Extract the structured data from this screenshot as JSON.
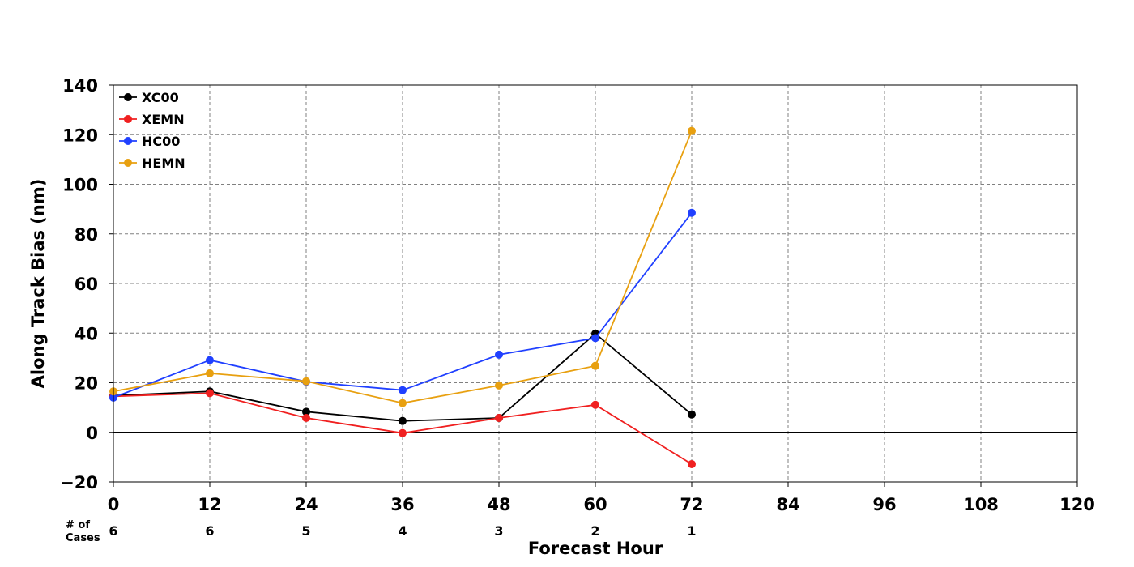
{
  "chart_data": {
    "type": "line",
    "xlabel": "Forecast Hour",
    "ylabel": "Along Track Bias (nm)",
    "xlim": [
      0,
      120
    ],
    "ylim": [
      -20,
      140
    ],
    "xticks": [
      0,
      12,
      24,
      36,
      48,
      60,
      72,
      84,
      96,
      108,
      120
    ],
    "yticks": [
      -20,
      0,
      20,
      40,
      60,
      80,
      100,
      120,
      140
    ],
    "ytick_labels": [
      "−20",
      "0",
      "20",
      "40",
      "60",
      "80",
      "100",
      "120",
      "140"
    ],
    "grid": true,
    "legend_position": "top-left",
    "cases_label_line1": "# of",
    "cases_label_line2": "Cases",
    "cases": [
      {
        "x": 0,
        "n": "6"
      },
      {
        "x": 12,
        "n": "6"
      },
      {
        "x": 24,
        "n": "5"
      },
      {
        "x": 36,
        "n": "4"
      },
      {
        "x": 48,
        "n": "3"
      },
      {
        "x": 60,
        "n": "2"
      },
      {
        "x": 72,
        "n": "1"
      }
    ],
    "series": [
      {
        "name": "XC00",
        "color": "#000000",
        "x": [
          0,
          12,
          24,
          36,
          48,
          60,
          72
        ],
        "y": [
          14.8,
          16.5,
          8.3,
          4.6,
          5.8,
          39.8,
          7.2
        ]
      },
      {
        "name": "XEMN",
        "color": "#f02020",
        "x": [
          0,
          12,
          24,
          36,
          48,
          60,
          72
        ],
        "y": [
          14.5,
          15.8,
          5.8,
          -0.3,
          5.8,
          11.1,
          -12.8
        ]
      },
      {
        "name": "HC00",
        "color": "#2040ff",
        "x": [
          0,
          12,
          24,
          36,
          48,
          60,
          72
        ],
        "y": [
          14.0,
          29.1,
          20.4,
          17.0,
          31.3,
          38.0,
          88.5
        ]
      },
      {
        "name": "HEMN",
        "color": "#e8a010",
        "x": [
          0,
          12,
          24,
          36,
          48,
          60,
          72
        ],
        "y": [
          16.5,
          23.8,
          20.6,
          11.8,
          18.9,
          26.8,
          121.5
        ]
      }
    ]
  }
}
